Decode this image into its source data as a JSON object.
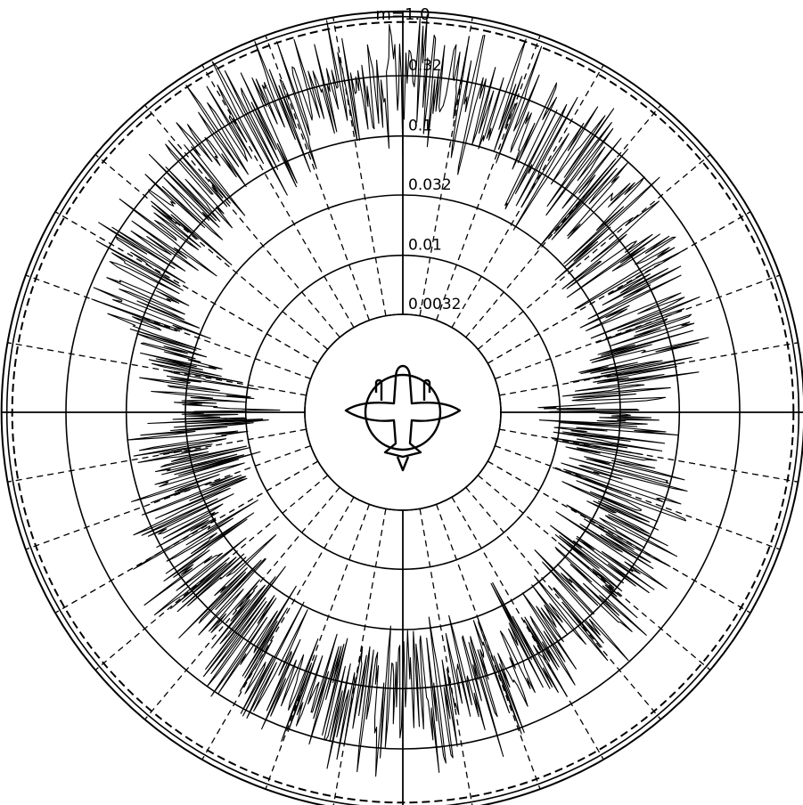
{
  "chart_data": {
    "type": "polar-log-radar",
    "top_label": "m=1.0",
    "radial_scale": "logarithmic",
    "radial_range": [
      0.001,
      1.0
    ],
    "ring_values": [
      0.0032,
      0.01,
      0.032,
      0.1,
      0.32,
      1.0
    ],
    "ring_labels": [
      "0.0032",
      "0.01",
      "0.032",
      "0.1",
      "0.32"
    ],
    "angular_gridlines": "every 10 degrees, dashed",
    "axes": "horizontal and vertical solid through center",
    "center_icon": "airplane-top-view",
    "series": [
      {
        "envelope": [
          {
            "angle": 0,
            "value": 0.3
          },
          {
            "angle": 15,
            "value": 0.22
          },
          {
            "angle": 30,
            "value": 0.15
          },
          {
            "angle": 45,
            "value": 0.11
          },
          {
            "angle": 60,
            "value": 0.08
          },
          {
            "angle": 75,
            "value": 0.06
          },
          {
            "angle": 90,
            "value": 0.02
          },
          {
            "angle": 105,
            "value": 0.045
          },
          {
            "angle": 120,
            "value": 0.06
          },
          {
            "angle": 135,
            "value": 0.07
          },
          {
            "angle": 150,
            "value": 0.08
          },
          {
            "angle": 165,
            "value": 0.1
          },
          {
            "angle": 180,
            "value": 0.12
          },
          {
            "angle": 195,
            "value": 0.14
          },
          {
            "angle": 210,
            "value": 0.1
          },
          {
            "angle": 225,
            "value": 0.06
          },
          {
            "angle": 240,
            "value": 0.05
          },
          {
            "angle": 255,
            "value": 0.035
          },
          {
            "angle": 270,
            "value": 0.02
          },
          {
            "angle": 285,
            "value": 0.05
          },
          {
            "angle": 300,
            "value": 0.12
          },
          {
            "angle": 315,
            "value": 0.2
          },
          {
            "angle": 330,
            "value": 0.25
          },
          {
            "angle": 345,
            "value": 0.28
          }
        ]
      }
    ]
  }
}
